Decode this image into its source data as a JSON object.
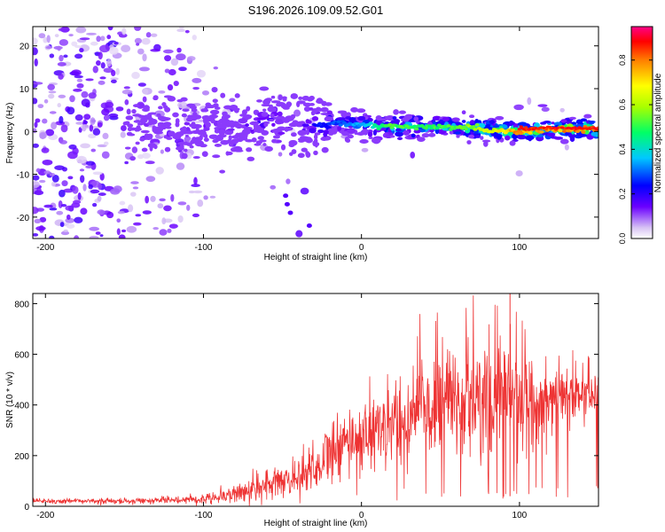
{
  "title": "S196.2026.109.09.52.G01",
  "chart_data": [
    {
      "type": "heatmap",
      "panel": "top",
      "xlabel": "Height of straight line (km)",
      "ylabel": "Frequency (Hz)",
      "xlim": [
        -208,
        150
      ],
      "ylim": [
        -25,
        24.5
      ],
      "xticks": [
        -200,
        -100,
        0,
        100
      ],
      "yticks": [
        -20,
        -10,
        0,
        10,
        20
      ],
      "colorbar": {
        "label": "Normalized spectral amplitude",
        "range": [
          0.0,
          0.95
        ],
        "ticks": [
          0.0,
          0.2,
          0.4,
          0.6,
          0.8
        ]
      },
      "ridge": {
        "description_points_x": [
          -100,
          -80,
          -60,
          -40,
          -20,
          0,
          20,
          40,
          60,
          80,
          100,
          120,
          150
        ],
        "frequency_hz": [
          1.5,
          0.5,
          3.0,
          1.5,
          2.0,
          1.5,
          1.0,
          1.0,
          1.0,
          0.5,
          0.0,
          0.5,
          0.5
        ],
        "peak_amplitude": [
          0.15,
          0.15,
          0.25,
          0.22,
          0.3,
          0.4,
          0.6,
          0.55,
          0.6,
          0.7,
          0.9,
          0.85,
          0.95
        ]
      }
    },
    {
      "type": "line",
      "panel": "bottom",
      "xlabel": "Height of straight line (km)",
      "ylabel": "SNR (10 * v/v)",
      "xlim": [
        -208,
        150
      ],
      "ylim": [
        0,
        840
      ],
      "xticks": [
        -200,
        -100,
        0,
        100
      ],
      "yticks": [
        0,
        200,
        400,
        600,
        800
      ],
      "color": "#ee3333",
      "envelope": {
        "x": [
          -208,
          -150,
          -120,
          -100,
          -80,
          -60,
          -40,
          -20,
          0,
          20,
          40,
          60,
          80,
          100,
          120,
          150
        ],
        "mean": [
          20,
          20,
          25,
          30,
          50,
          80,
          120,
          200,
          280,
          330,
          380,
          400,
          420,
          400,
          420,
          440
        ],
        "spread": [
          10,
          10,
          12,
          20,
          40,
          60,
          80,
          120,
          140,
          160,
          200,
          220,
          220,
          200,
          120,
          80
        ]
      }
    }
  ]
}
